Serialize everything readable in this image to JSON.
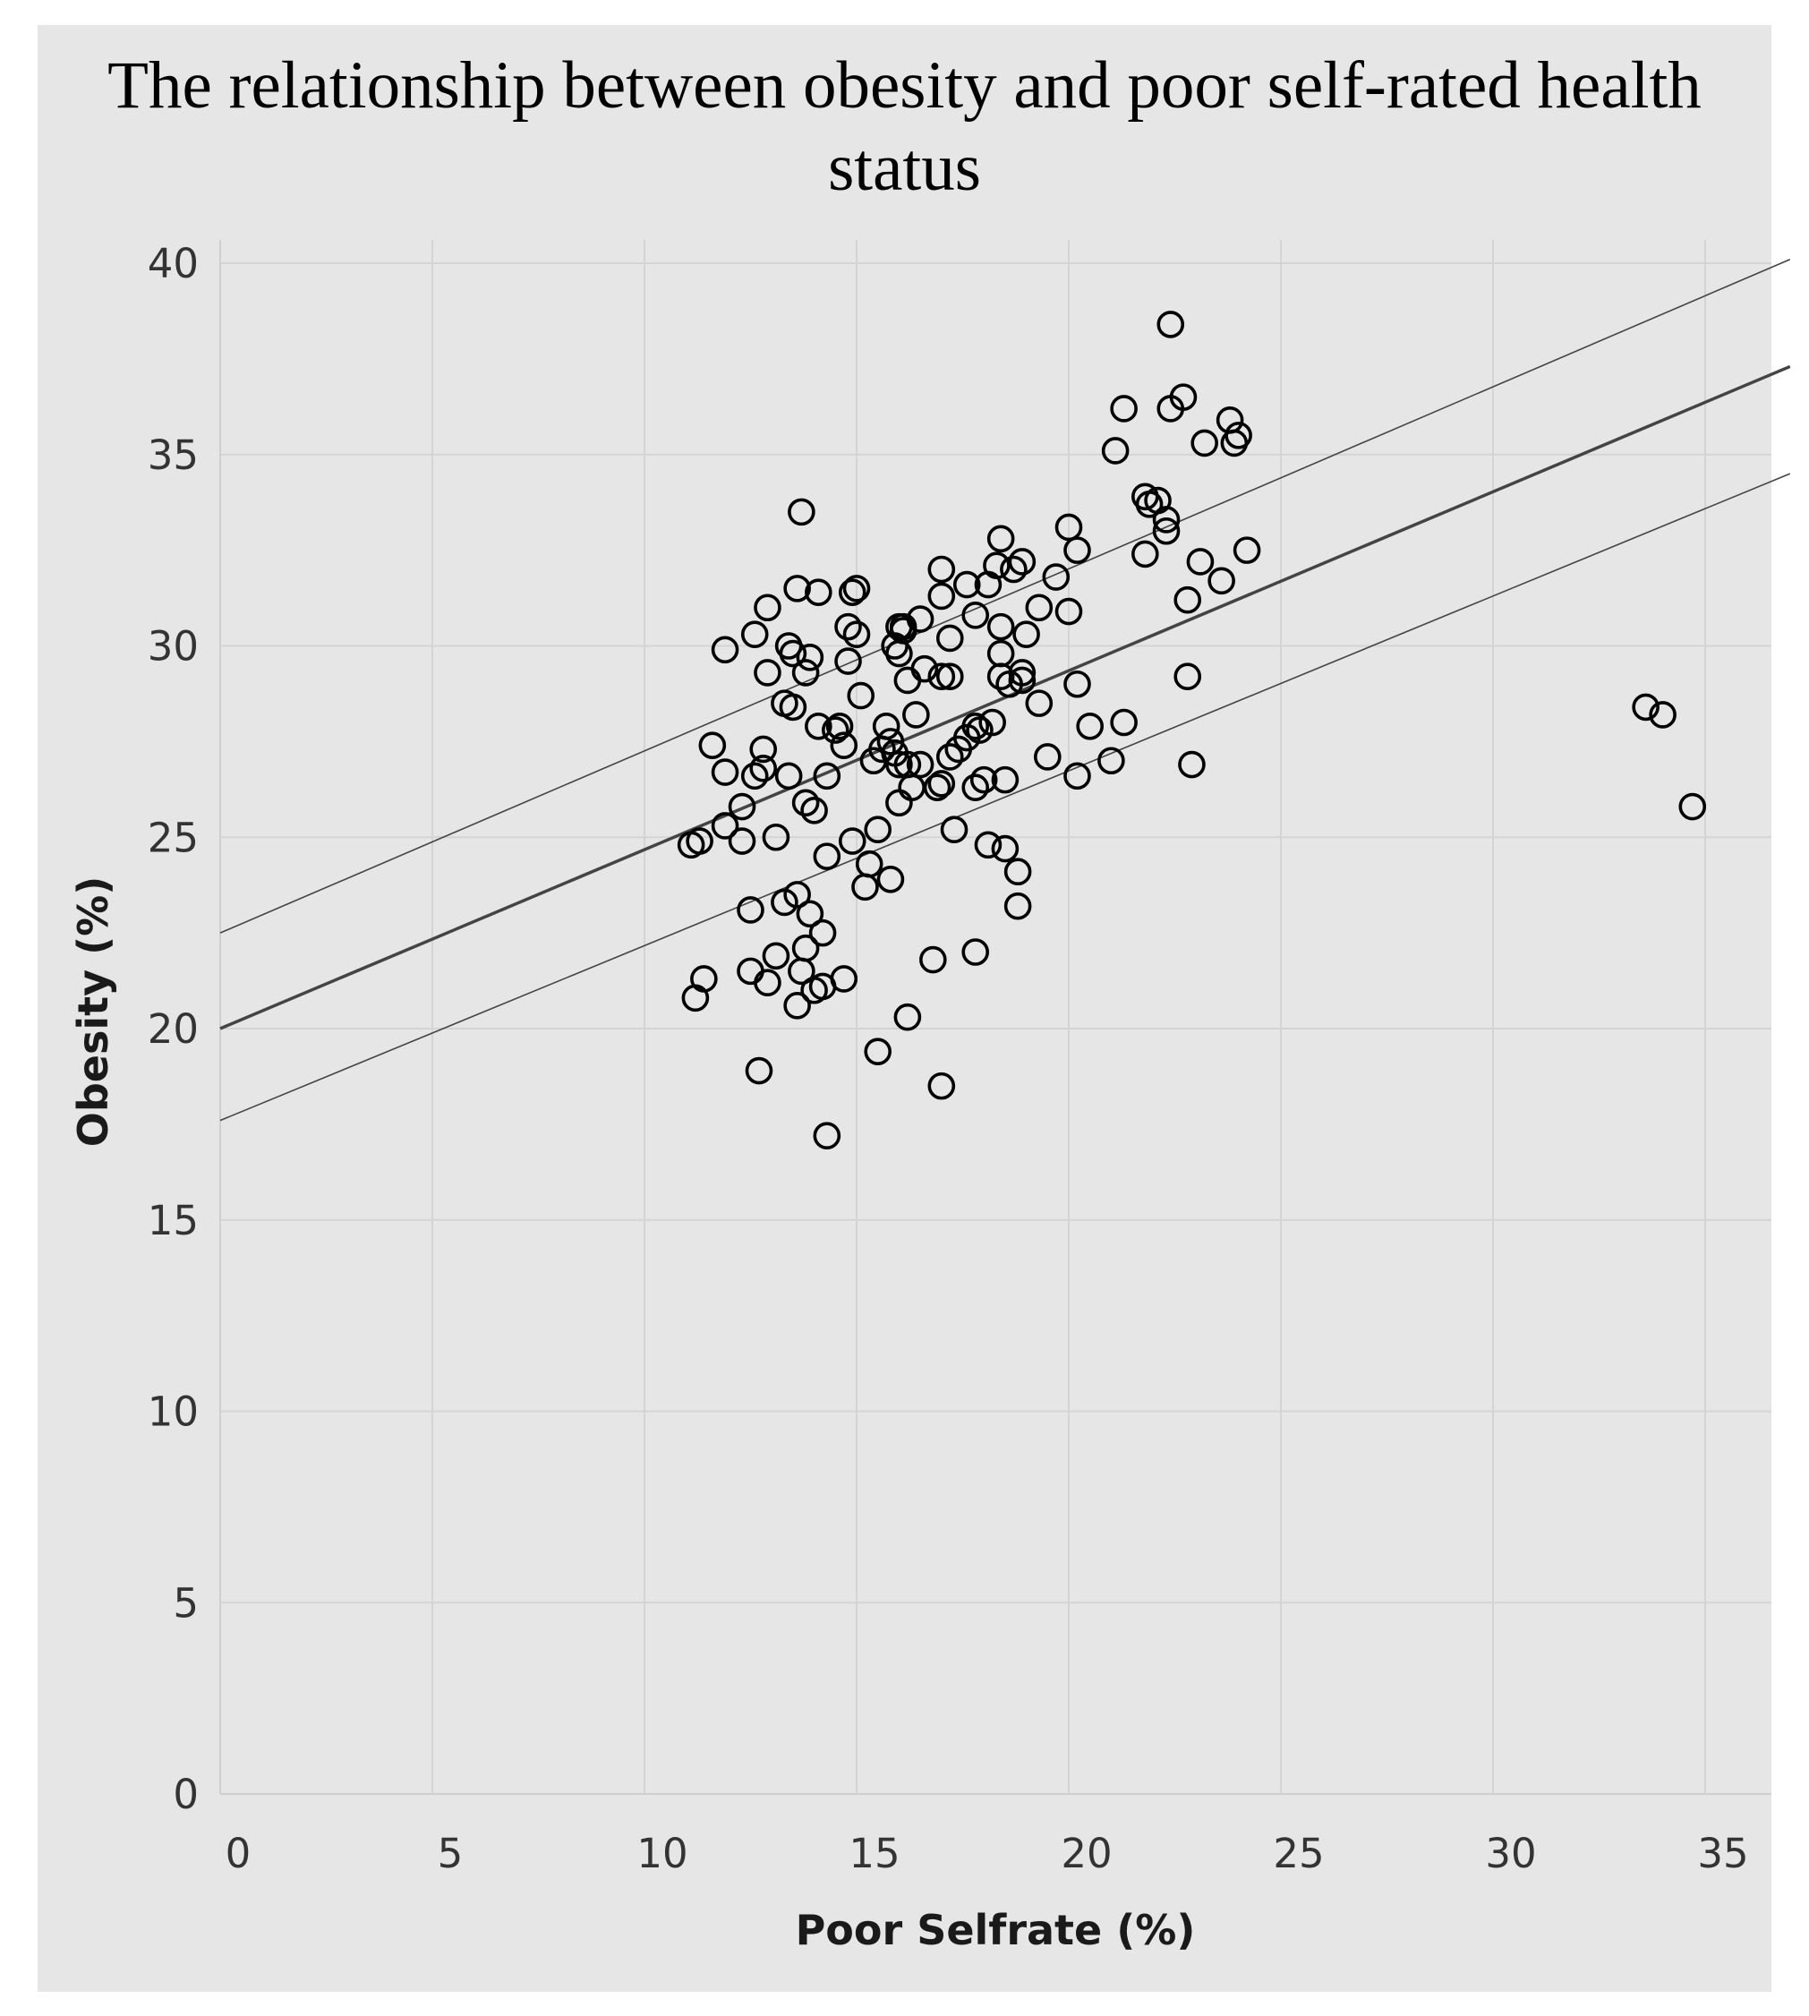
{
  "chart_data": {
    "type": "scatter",
    "title": "The relationship between obesity and poor self-rated health status",
    "xlabel": "Poor Selfrate (%)",
    "ylabel": "Obesity (%)",
    "xlim": [
      0,
      37
    ],
    "ylim": [
      0,
      40
    ],
    "xticks": [
      0,
      5,
      10,
      15,
      20,
      25,
      30,
      35
    ],
    "yticks": [
      0,
      5,
      10,
      15,
      20,
      25,
      30,
      35,
      40
    ],
    "grid": true,
    "legend": "none",
    "colors": {
      "background": "#e6e6e6",
      "grid": "#d4d4d4",
      "marker": "#000000",
      "trend": "#444444"
    },
    "trend_line": {
      "x": [
        0,
        37
      ],
      "y": [
        20.0,
        37.3
      ]
    },
    "confidence_upper": {
      "x": [
        0,
        37
      ],
      "y": [
        22.5,
        40.1
      ]
    },
    "confidence_lower": {
      "x": [
        0,
        37
      ],
      "y": [
        17.6,
        34.5
      ]
    },
    "points": [
      [
        11.1,
        24.8
      ],
      [
        11.3,
        24.9
      ],
      [
        11.2,
        20.8
      ],
      [
        11.4,
        21.3
      ],
      [
        11.6,
        27.4
      ],
      [
        11.9,
        26.7
      ],
      [
        11.9,
        29.9
      ],
      [
        11.9,
        25.3
      ],
      [
        12.3,
        25.8
      ],
      [
        12.3,
        24.9
      ],
      [
        12.5,
        23.1
      ],
      [
        12.5,
        21.5
      ],
      [
        12.6,
        26.6
      ],
      [
        12.6,
        30.3
      ],
      [
        12.7,
        18.9
      ],
      [
        12.8,
        26.8
      ],
      [
        12.8,
        27.3
      ],
      [
        12.9,
        29.3
      ],
      [
        12.9,
        31.0
      ],
      [
        12.9,
        21.2
      ],
      [
        13.1,
        21.9
      ],
      [
        13.1,
        25.0
      ],
      [
        13.3,
        28.5
      ],
      [
        13.3,
        23.3
      ],
      [
        13.4,
        26.6
      ],
      [
        13.4,
        30.0
      ],
      [
        13.5,
        29.8
      ],
      [
        13.5,
        28.4
      ],
      [
        13.6,
        23.5
      ],
      [
        13.6,
        31.5
      ],
      [
        13.6,
        20.6
      ],
      [
        13.7,
        33.5
      ],
      [
        13.7,
        21.5
      ],
      [
        13.8,
        25.9
      ],
      [
        13.8,
        22.1
      ],
      [
        13.8,
        29.3
      ],
      [
        13.9,
        23.0
      ],
      [
        13.9,
        29.7
      ],
      [
        14.0,
        25.7
      ],
      [
        14.0,
        21.0
      ],
      [
        14.1,
        31.4
      ],
      [
        14.1,
        27.9
      ],
      [
        14.2,
        22.5
      ],
      [
        14.2,
        21.1
      ],
      [
        14.3,
        26.6
      ],
      [
        14.3,
        24.5
      ],
      [
        14.3,
        17.2
      ],
      [
        14.5,
        27.8
      ],
      [
        14.6,
        27.9
      ],
      [
        14.7,
        27.4
      ],
      [
        14.7,
        21.3
      ],
      [
        14.8,
        29.6
      ],
      [
        14.8,
        30.5
      ],
      [
        14.9,
        31.4
      ],
      [
        14.9,
        24.9
      ],
      [
        15.0,
        31.5
      ],
      [
        15.0,
        30.3
      ],
      [
        15.1,
        28.7
      ],
      [
        15.2,
        23.7
      ],
      [
        15.3,
        24.3
      ],
      [
        15.4,
        27.0
      ],
      [
        15.5,
        25.2
      ],
      [
        15.5,
        19.4
      ],
      [
        15.6,
        27.3
      ],
      [
        15.7,
        27.9
      ],
      [
        15.8,
        27.5
      ],
      [
        15.8,
        23.9
      ],
      [
        15.9,
        27.2
      ],
      [
        15.9,
        30.0
      ],
      [
        16.0,
        30.5
      ],
      [
        16.0,
        29.8
      ],
      [
        16.0,
        26.9
      ],
      [
        16.0,
        25.9
      ],
      [
        16.1,
        30.5
      ],
      [
        16.1,
        30.4
      ],
      [
        16.2,
        26.9
      ],
      [
        16.2,
        29.1
      ],
      [
        16.2,
        20.3
      ],
      [
        16.3,
        26.3
      ],
      [
        16.4,
        28.2
      ],
      [
        16.5,
        26.9
      ],
      [
        16.5,
        30.7
      ],
      [
        16.6,
        29.4
      ],
      [
        16.8,
        21.8
      ],
      [
        16.9,
        26.3
      ],
      [
        17.0,
        26.4
      ],
      [
        17.0,
        29.2
      ],
      [
        17.0,
        31.3
      ],
      [
        17.0,
        32.0
      ],
      [
        17.0,
        18.5
      ],
      [
        17.2,
        30.2
      ],
      [
        17.2,
        29.2
      ],
      [
        17.2,
        27.1
      ],
      [
        17.3,
        25.2
      ],
      [
        17.4,
        27.3
      ],
      [
        17.6,
        31.6
      ],
      [
        17.6,
        27.6
      ],
      [
        17.8,
        30.8
      ],
      [
        17.8,
        27.9
      ],
      [
        17.8,
        26.3
      ],
      [
        17.8,
        22.0
      ],
      [
        17.9,
        27.8
      ],
      [
        18.0,
        26.5
      ],
      [
        18.1,
        31.6
      ],
      [
        18.1,
        24.8
      ],
      [
        18.2,
        28.0
      ],
      [
        18.3,
        32.1
      ],
      [
        18.4,
        32.8
      ],
      [
        18.4,
        30.5
      ],
      [
        18.4,
        29.8
      ],
      [
        18.4,
        29.2
      ],
      [
        18.5,
        26.5
      ],
      [
        18.5,
        24.7
      ],
      [
        18.6,
        29.0
      ],
      [
        18.7,
        32.0
      ],
      [
        18.8,
        24.1
      ],
      [
        18.8,
        23.2
      ],
      [
        18.9,
        32.2
      ],
      [
        18.9,
        29.3
      ],
      [
        18.9,
        29.1
      ],
      [
        19.0,
        30.3
      ],
      [
        19.3,
        28.5
      ],
      [
        19.3,
        31.0
      ],
      [
        19.5,
        27.1
      ],
      [
        19.7,
        31.8
      ],
      [
        20.0,
        33.1
      ],
      [
        20.0,
        30.9
      ],
      [
        20.2,
        32.5
      ],
      [
        20.2,
        29.0
      ],
      [
        20.2,
        26.6
      ],
      [
        20.5,
        27.9
      ],
      [
        21.0,
        27.0
      ],
      [
        21.1,
        35.1
      ],
      [
        21.3,
        36.2
      ],
      [
        21.3,
        28.0
      ],
      [
        21.8,
        33.9
      ],
      [
        21.8,
        32.4
      ],
      [
        21.9,
        33.7
      ],
      [
        22.1,
        33.8
      ],
      [
        22.3,
        33.3
      ],
      [
        22.3,
        33.0
      ],
      [
        22.4,
        38.4
      ],
      [
        22.4,
        36.2
      ],
      [
        22.7,
        36.5
      ],
      [
        22.8,
        31.2
      ],
      [
        22.8,
        29.2
      ],
      [
        22.9,
        26.9
      ],
      [
        23.1,
        32.2
      ],
      [
        23.2,
        35.3
      ],
      [
        23.6,
        31.7
      ],
      [
        23.8,
        35.9
      ],
      [
        23.9,
        35.3
      ],
      [
        24.0,
        35.5
      ],
      [
        24.2,
        32.5
      ],
      [
        33.6,
        28.4
      ],
      [
        34.0,
        28.2
      ],
      [
        34.7,
        25.8
      ]
    ]
  }
}
